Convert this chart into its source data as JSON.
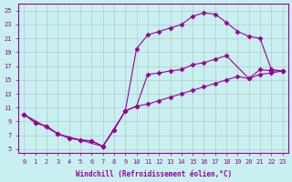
{
  "xlabel": "Windchill (Refroidissement éolien,°C)",
  "bg_color": "#c8f0f0",
  "line_color": "#990099",
  "marker_color": "#990099",
  "xlim": [
    -0.5,
    23.5
  ],
  "ylim": [
    4.5,
    26
  ],
  "xticks": [
    0,
    1,
    2,
    3,
    4,
    5,
    6,
    7,
    8,
    9,
    10,
    11,
    12,
    13,
    14,
    15,
    16,
    17,
    18,
    19,
    20,
    21,
    22,
    23
  ],
  "yticks": [
    5,
    7,
    9,
    11,
    13,
    15,
    17,
    19,
    21,
    23,
    25
  ],
  "curve1_x": [
    0,
    1,
    2,
    3,
    4,
    5,
    6,
    7,
    8,
    9,
    10,
    11,
    12,
    13,
    14,
    15,
    16,
    17,
    18,
    19,
    20,
    21,
    22,
    23
  ],
  "curve1_y": [
    10.0,
    8.8,
    8.3,
    7.2,
    6.6,
    6.3,
    6.2,
    5.4,
    7.8,
    10.5,
    19.5,
    21.5,
    22.0,
    22.5,
    23.0,
    24.2,
    24.7,
    24.5,
    23.3,
    22.0,
    21.3,
    21.0,
    16.5,
    16.3
  ],
  "curve2_x": [
    0,
    3,
    7,
    9,
    10,
    11,
    12,
    13,
    14,
    15,
    16,
    17,
    18,
    20,
    21,
    22,
    23
  ],
  "curve2_y": [
    10.0,
    7.2,
    5.4,
    10.5,
    11.2,
    15.8,
    16.0,
    16.3,
    16.5,
    17.2,
    17.5,
    18.0,
    18.5,
    15.2,
    16.5,
    16.3,
    16.3
  ],
  "curve3_x": [
    0,
    1,
    2,
    3,
    4,
    5,
    6,
    7,
    8,
    9,
    10,
    11,
    12,
    13,
    14,
    15,
    16,
    17,
    18,
    19,
    20,
    21,
    22,
    23
  ],
  "curve3_y": [
    10.0,
    8.8,
    8.3,
    7.2,
    6.6,
    6.3,
    6.2,
    5.4,
    7.8,
    10.5,
    11.2,
    11.5,
    12.0,
    12.5,
    13.0,
    13.5,
    14.0,
    14.5,
    15.0,
    15.5,
    15.2,
    15.8,
    16.0,
    16.3
  ],
  "grid_color": "#aaaaaa",
  "font_color": "#990099",
  "font_name": "monospace"
}
